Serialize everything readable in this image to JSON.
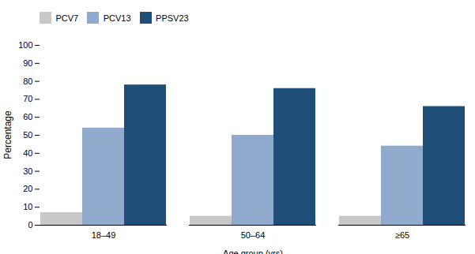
{
  "chart_data": {
    "type": "bar",
    "categories": [
      "18–49",
      "50–64",
      "≥65"
    ],
    "series": [
      {
        "name": "PCV7",
        "color": "#c8c8c8",
        "values": [
          7,
          5,
          5
        ]
      },
      {
        "name": "PCV13",
        "color": "#8faacc",
        "values": [
          54,
          50,
          44
        ]
      },
      {
        "name": "PPSV23",
        "color": "#1f4e79",
        "values": [
          78,
          76,
          66
        ]
      }
    ],
    "xlabel": "Age group (yrs)",
    "ylabel": "Percentage",
    "ylim": [
      0,
      100
    ],
    "yticks": [
      0,
      10,
      20,
      30,
      40,
      50,
      60,
      70,
      80,
      90,
      100
    ],
    "legend": "upper left",
    "grid": false
  }
}
